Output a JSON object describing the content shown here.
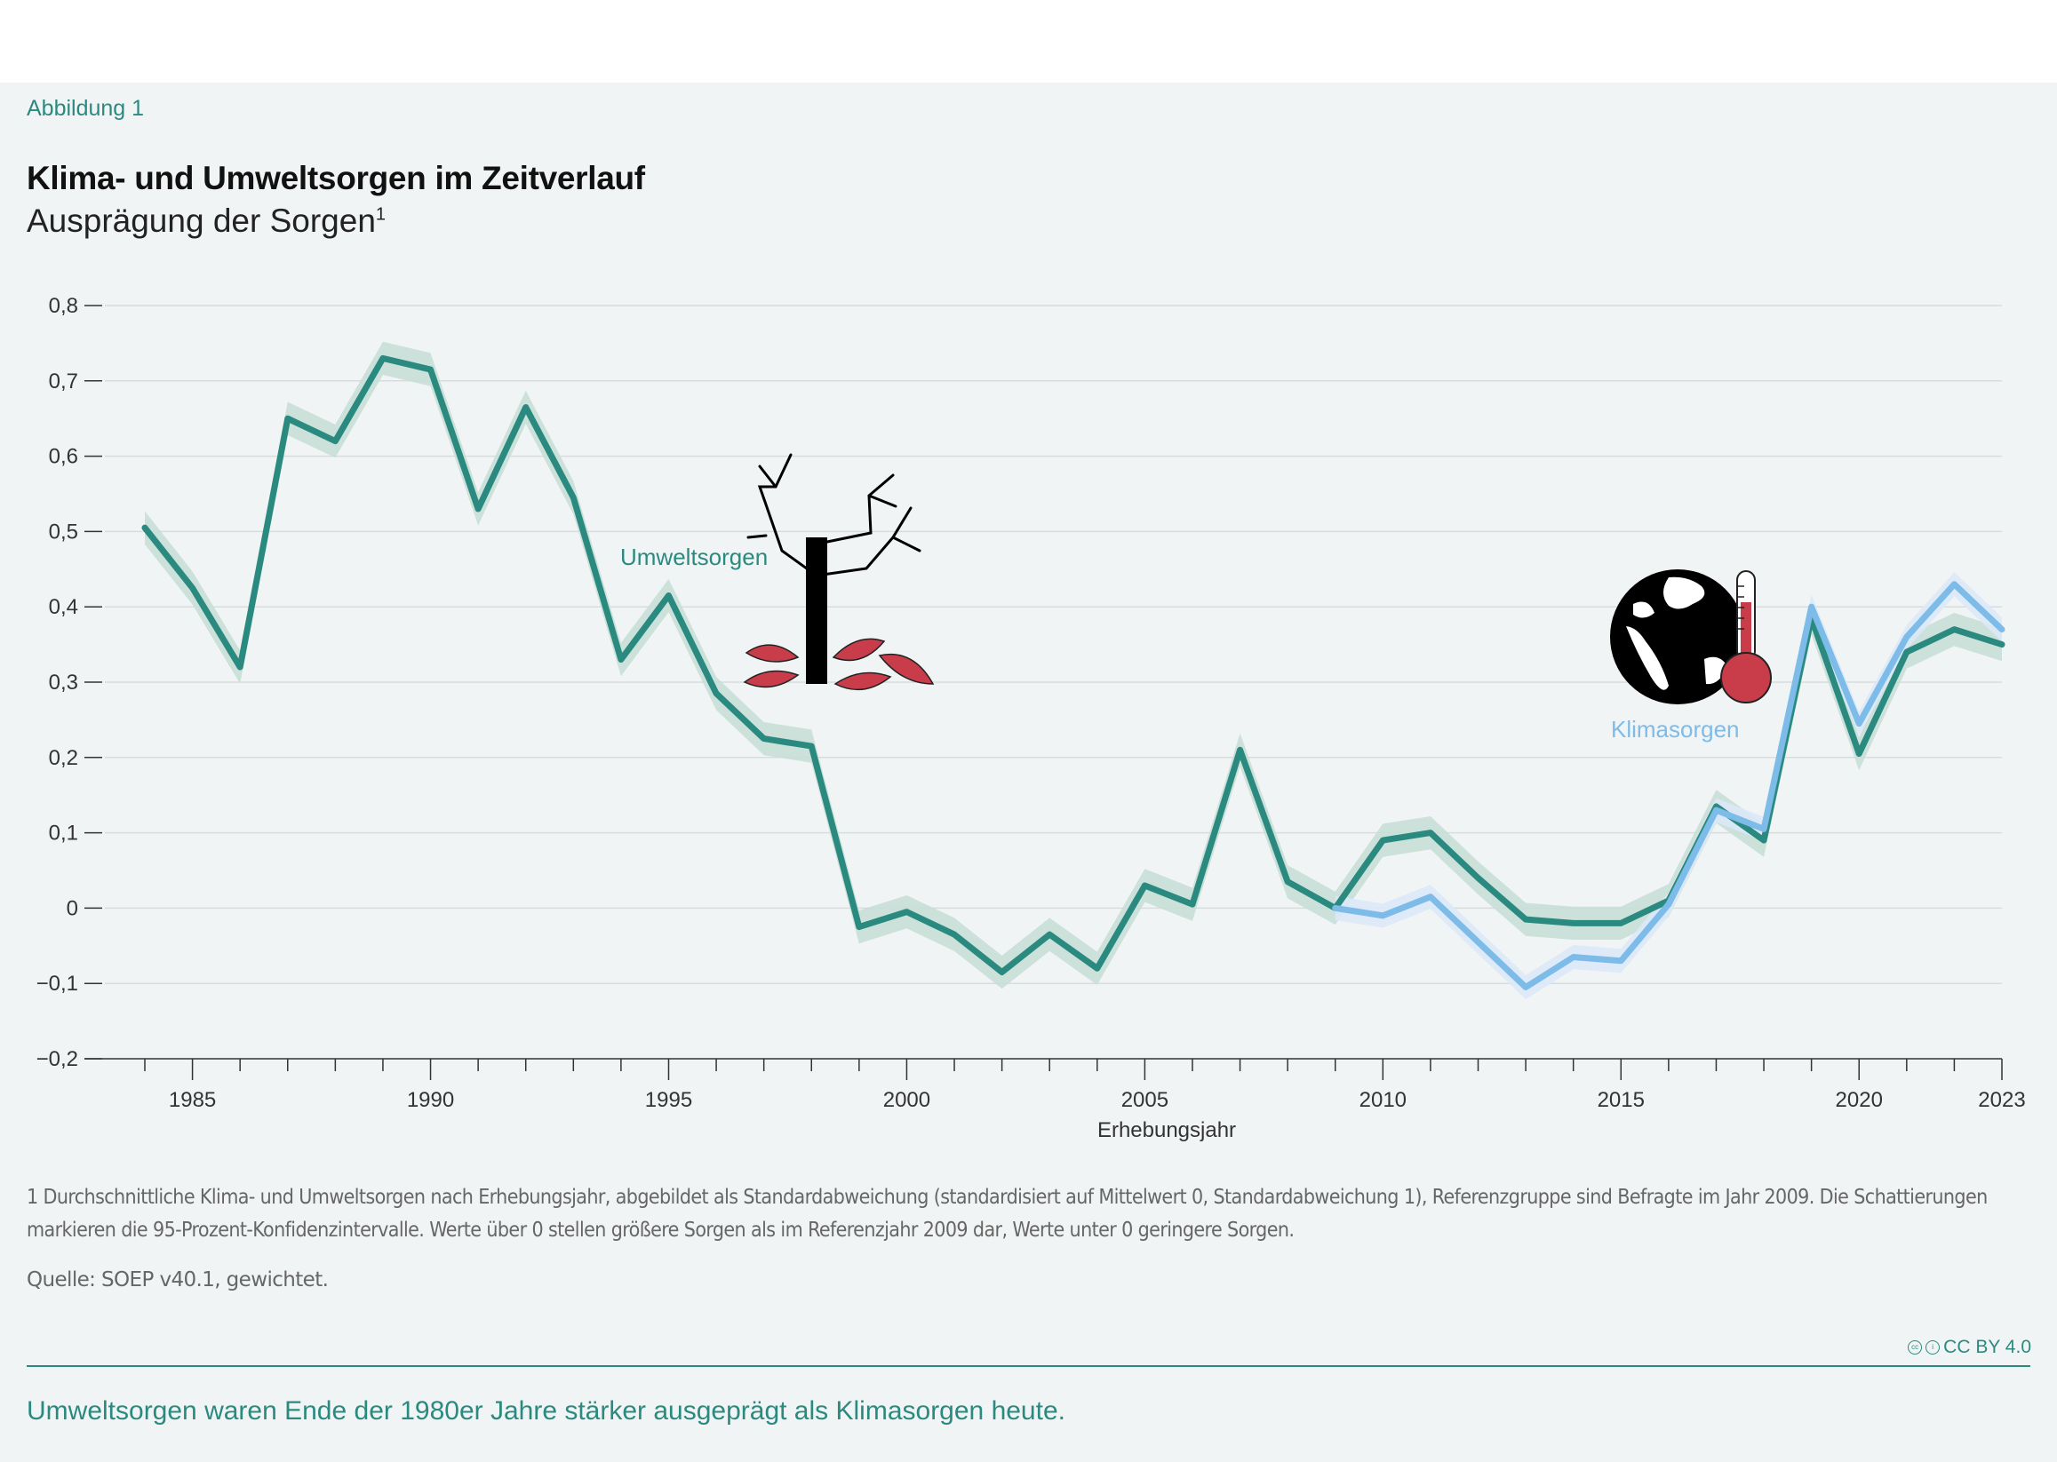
{
  "figure_label": "Abbildung 1",
  "title": "Klima- und Umweltsorgen im Zeitverlauf",
  "subtitle": "Ausprägung der Sorgen",
  "subtitle_footnote_mark": "1",
  "footnote": "1  Durchschnittliche Klima- und Umweltsorgen nach Erhebungsjahr, abgebildet als Standardabweichung (standardisiert auf Mittelwert 0, Standardabweichung 1), Referenzgruppe sind Befragte im Jahr 2009. Die Schattierungen markieren die 95-Prozent-Konfidenzintervalle. Werte über 0 stellen größere Sorgen als im Referenzjahr 2009 dar, Werte unter 0 geringere Sorgen.",
  "source": "Quelle: SOEP v40.1, gewichtet.",
  "license": "CC BY 4.0",
  "takeaway": "Umweltsorgen waren Ende der 1980er Jahre stärker ausgeprägt als Klimasorgen heute.",
  "icons": [
    "dead-tree-icon",
    "globe-thermometer-icon"
  ],
  "colors": {
    "umwelt": "#2b8a80",
    "umwelt_ci": "#c6dfd7",
    "klima": "#7dbbe8",
    "klima_ci": "#dbe9f8",
    "accent": "#2b8a80",
    "icon_red": "#c93d4b"
  },
  "chart_data": {
    "type": "line",
    "xlabel": "Erhebungsjahr",
    "ylabel": "",
    "xlim": [
      1984,
      2023
    ],
    "ylim": [
      -0.2,
      0.8
    ],
    "x_ticks": [
      1985,
      1990,
      1995,
      2000,
      2005,
      2010,
      2015,
      2020,
      2023
    ],
    "y_ticks": [
      0.8,
      0.7,
      0.6,
      0.5,
      0.4,
      0.3,
      0.2,
      0.1,
      0,
      -0.1,
      -0.2
    ],
    "y_tick_labels": [
      "0,8",
      "0,7",
      "0,6",
      "0,5",
      "0,4",
      "0,3",
      "0,2",
      "0,1",
      "0",
      "−0,1",
      "−0,2"
    ],
    "grid": true,
    "series": [
      {
        "name": "Umweltsorgen",
        "x": [
          1984,
          1985,
          1986,
          1987,
          1988,
          1989,
          1990,
          1991,
          1992,
          1993,
          1994,
          1995,
          1996,
          1997,
          1998,
          1999,
          2000,
          2001,
          2002,
          2003,
          2004,
          2005,
          2006,
          2007,
          2008,
          2009,
          2010,
          2011,
          2012,
          2013,
          2014,
          2015,
          2016,
          2017,
          2018,
          2019,
          2020,
          2021,
          2022,
          2023
        ],
        "values": [
          0.505,
          0.425,
          0.32,
          0.65,
          0.62,
          0.73,
          0.715,
          0.53,
          0.665,
          0.545,
          0.33,
          0.415,
          0.285,
          0.225,
          0.215,
          -0.025,
          -0.005,
          -0.035,
          -0.085,
          -0.035,
          -0.08,
          0.03,
          0.005,
          0.21,
          0.035,
          0.0,
          0.09,
          0.1,
          0.04,
          -0.015,
          -0.02,
          -0.02,
          0.01,
          0.135,
          0.09,
          0.385,
          0.205,
          0.34,
          0.37,
          0.35
        ]
      },
      {
        "name": "Klimasorgen",
        "x": [
          2009,
          2010,
          2011,
          2012,
          2013,
          2014,
          2015,
          2016,
          2017,
          2018,
          2019,
          2020,
          2021,
          2022,
          2023
        ],
        "values": [
          0.0,
          -0.01,
          0.015,
          -0.045,
          -0.105,
          -0.065,
          -0.07,
          0.005,
          0.13,
          0.105,
          0.4,
          0.245,
          0.36,
          0.43,
          0.37
        ]
      }
    ]
  }
}
